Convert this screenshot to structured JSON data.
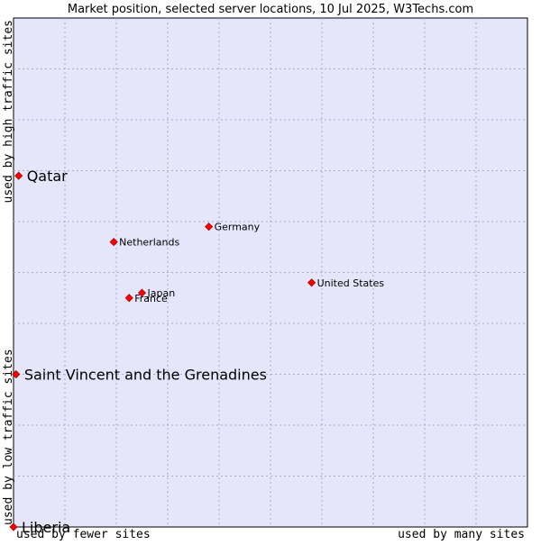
{
  "chart_data": {
    "type": "scatter",
    "title": "Market position, selected server locations, 10 Jul 2025, W3Techs.com",
    "xlabel_left": "used by fewer sites",
    "xlabel_right": "used by many sites",
    "ylabel_top": "used by high traffic sites",
    "ylabel_bottom": "used by low traffic sites",
    "xlim": [
      0,
      10
    ],
    "ylim": [
      0,
      10
    ],
    "grid": true,
    "colors": {
      "plot_background": "#e6e6fa",
      "grid": "#aaaacc",
      "point": "#ff0000",
      "point_outline": "#aa0000",
      "text": "#000000"
    },
    "points": [
      {
        "name": "Qatar",
        "x": 0.1,
        "y": 6.9,
        "emphasis": true
      },
      {
        "name": "Saint Vincent and the Grenadines",
        "x": 0.05,
        "y": 3.0,
        "emphasis": true
      },
      {
        "name": "Liberia",
        "x": 0.0,
        "y": 0.0,
        "emphasis": true
      },
      {
        "name": "Germany",
        "x": 3.8,
        "y": 5.9,
        "emphasis": false
      },
      {
        "name": "Netherlands",
        "x": 1.95,
        "y": 5.6,
        "emphasis": false
      },
      {
        "name": "United States",
        "x": 5.8,
        "y": 4.8,
        "emphasis": false
      },
      {
        "name": "Japan",
        "x": 2.5,
        "y": 4.6,
        "emphasis": false
      },
      {
        "name": "France",
        "x": 2.25,
        "y": 4.5,
        "emphasis": false
      }
    ]
  }
}
